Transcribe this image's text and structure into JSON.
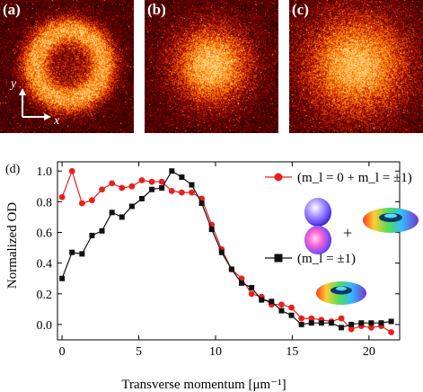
{
  "panels": [
    {
      "label": "(a)",
      "profile": "ring"
    },
    {
      "label": "(b)",
      "profile": "blob"
    },
    {
      "label": "(c)",
      "profile": "cloud"
    }
  ],
  "axes_inset": {
    "y": "y",
    "x": "x"
  },
  "panel_d_label": "(d)",
  "colors": {
    "series1": "#e8201e",
    "series2": "#111111",
    "image_bg": "#1c0805"
  },
  "chart_data": {
    "type": "line",
    "xlabel": "Transverse momentum [μm⁻¹]",
    "ylabel": "Normalized OD",
    "xlim": [
      -0.3,
      22.0
    ],
    "ylim": [
      -0.1,
      1.06
    ],
    "xticks": [
      0,
      5,
      10,
      15,
      20
    ],
    "yticks": [
      0.0,
      0.2,
      0.4,
      0.6,
      0.8,
      1.0
    ],
    "yticklabels": [
      "0.0",
      "0.2",
      "0.4",
      "0.6",
      "0.8",
      "1.0"
    ],
    "series": [
      {
        "name": "(m_l = 0 + m_l = ±1)",
        "marker": "circle",
        "x": [
          0,
          0.65,
          1.3,
          1.95,
          2.6,
          3.25,
          3.9,
          4.55,
          5.2,
          5.85,
          6.5,
          7.15,
          7.8,
          8.45,
          9.1,
          9.75,
          10.4,
          11.05,
          11.7,
          12.35,
          13.0,
          13.65,
          14.3,
          14.95,
          15.6,
          16.25,
          16.9,
          17.55,
          18.2,
          18.85,
          19.5,
          20.15,
          20.8,
          21.45
        ],
        "y": [
          0.83,
          1.0,
          0.79,
          0.81,
          0.88,
          0.92,
          0.89,
          0.9,
          0.94,
          0.93,
          0.93,
          0.87,
          0.86,
          0.86,
          0.82,
          0.65,
          0.49,
          0.36,
          0.3,
          0.2,
          0.18,
          0.13,
          0.13,
          0.11,
          0.04,
          0.04,
          0.03,
          0.02,
          0.04,
          -0.03,
          -0.01,
          -0.02,
          -0.01,
          -0.05
        ]
      },
      {
        "name": "(m_l = ±1)",
        "marker": "square",
        "x": [
          0,
          0.65,
          1.3,
          1.95,
          2.6,
          3.25,
          3.9,
          4.55,
          5.2,
          5.85,
          6.5,
          7.15,
          7.8,
          8.45,
          9.1,
          9.75,
          10.4,
          11.05,
          11.7,
          12.35,
          13.0,
          13.65,
          14.3,
          14.95,
          15.6,
          16.25,
          16.9,
          17.55,
          18.2,
          18.85,
          19.5,
          20.15,
          20.8,
          21.45
        ],
        "y": [
          0.3,
          0.47,
          0.46,
          0.58,
          0.61,
          0.73,
          0.7,
          0.77,
          0.82,
          0.88,
          0.89,
          1.0,
          0.96,
          0.91,
          0.79,
          0.62,
          0.47,
          0.36,
          0.27,
          0.24,
          0.16,
          0.15,
          0.09,
          0.06,
          0.0,
          0.01,
          0.01,
          0.01,
          -0.02,
          0.0,
          0.01,
          0.01,
          0.01,
          0.02
        ]
      }
    ],
    "legend": [
      {
        "label": "(m_l = 0 + m_l = ±1)",
        "series": 0
      },
      {
        "label": "(m_l = ±1)",
        "series": 1
      }
    ],
    "legend_placement": "right",
    "plus_sign": "+"
  }
}
